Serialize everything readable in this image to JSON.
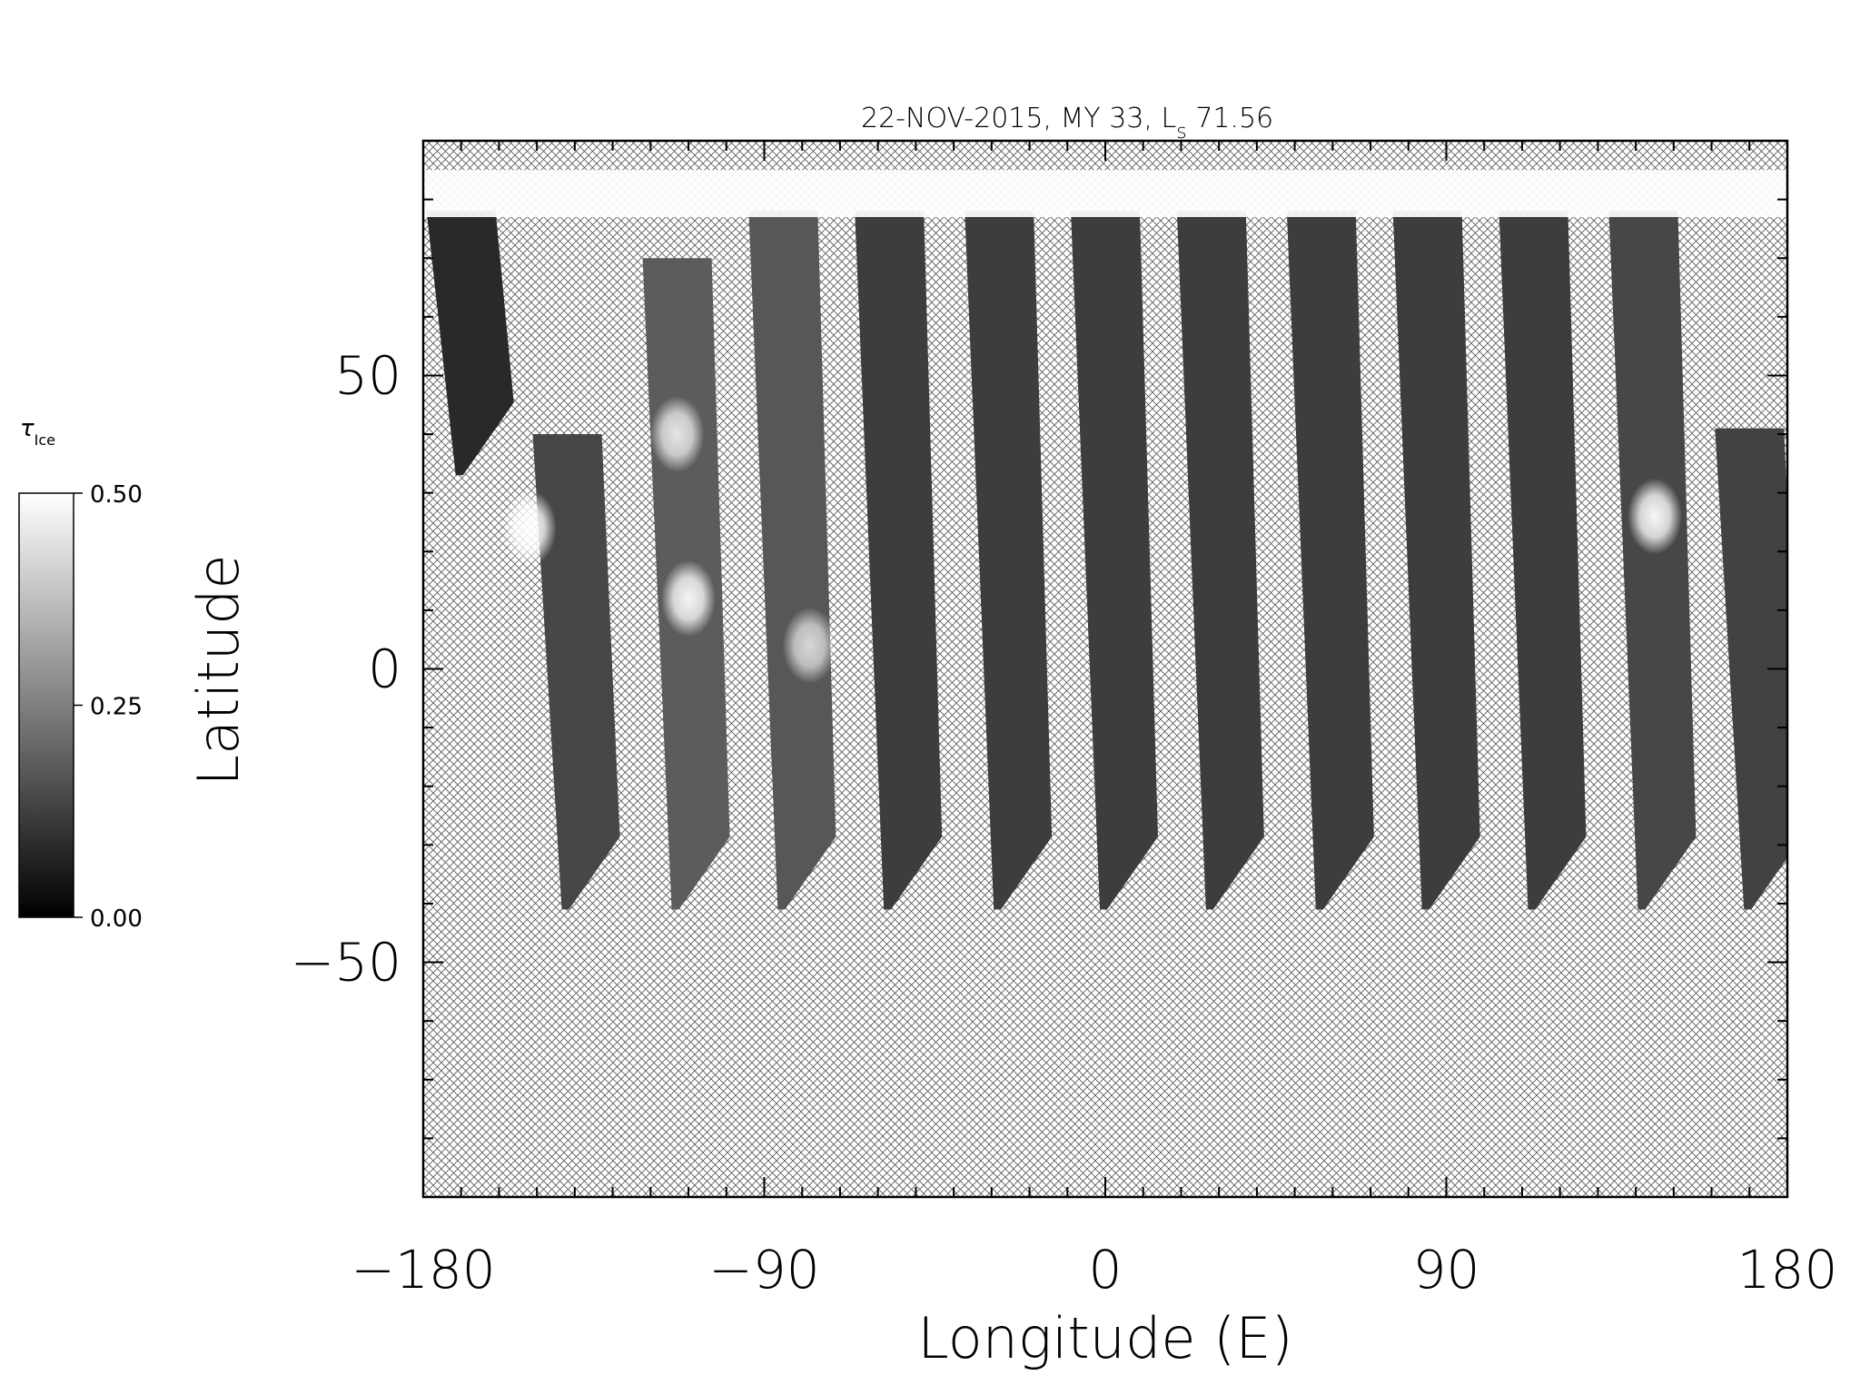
{
  "chart_data": {
    "type": "heatmap",
    "title": "22-NOV-2015, MY 33,  L",
    "title_sub": "s",
    "title_value": " 71.56",
    "xlabel": "Longitude (E)",
    "ylabel": "Latitude",
    "xlim": [
      -180,
      180
    ],
    "ylim": [
      -90,
      90
    ],
    "x_ticks": [
      -180,
      -90,
      0,
      90,
      180
    ],
    "y_ticks": [
      50,
      0,
      -50
    ],
    "x_tick_labels": [
      "−180",
      "−90",
      "0",
      "90",
      "180"
    ],
    "y_tick_labels": [
      "50",
      "0",
      "−50"
    ],
    "colormap": "grayscale",
    "no_data_pattern": "crosshatch",
    "colorbar": {
      "label": "τ",
      "label_sub": "Ice",
      "range": [
        0.0,
        0.5
      ],
      "ticks": [
        0.5,
        0.25,
        0.0
      ],
      "tick_labels": [
        "0.50",
        "0.25",
        "0.00"
      ]
    },
    "polar_cap": {
      "lat_min": 77,
      "lat_max": 85,
      "value": 0.5
    },
    "swaths": [
      {
        "lon": -170,
        "lat_top": 78,
        "lat_bottom": 33,
        "value": 0.08
      },
      {
        "lon": -142,
        "lat_top": 40,
        "lat_bottom": -41,
        "value": 0.14
      },
      {
        "lon": -113,
        "lat_top": 70,
        "lat_bottom": -41,
        "value": 0.18
      },
      {
        "lon": -85,
        "lat_top": 78,
        "lat_bottom": -41,
        "value": 0.17
      },
      {
        "lon": -57,
        "lat_top": 78,
        "lat_bottom": -41,
        "value": 0.12
      },
      {
        "lon": -28,
        "lat_top": 78,
        "lat_bottom": -41,
        "value": 0.12
      },
      {
        "lon": 0,
        "lat_top": 78,
        "lat_bottom": -41,
        "value": 0.12
      },
      {
        "lon": 28,
        "lat_top": 78,
        "lat_bottom": -41,
        "value": 0.12
      },
      {
        "lon": 57,
        "lat_top": 78,
        "lat_bottom": -41,
        "value": 0.12
      },
      {
        "lon": 85,
        "lat_top": 78,
        "lat_bottom": -41,
        "value": 0.12
      },
      {
        "lon": 113,
        "lat_top": 78,
        "lat_bottom": -41,
        "value": 0.12
      },
      {
        "lon": 142,
        "lat_top": 78,
        "lat_bottom": -41,
        "value": 0.14
      },
      {
        "lon": 170,
        "lat_top": 41,
        "lat_bottom": -41,
        "value": 0.13
      }
    ],
    "bright_features": [
      {
        "lon": -152,
        "lat": 24,
        "value": 0.48
      },
      {
        "lon": -113,
        "lat": 40,
        "value": 0.42
      },
      {
        "lon": -110,
        "lat": 12,
        "value": 0.47
      },
      {
        "lon": -78,
        "lat": 4,
        "value": 0.38
      },
      {
        "lon": 145,
        "lat": 26,
        "value": 0.48
      }
    ]
  }
}
